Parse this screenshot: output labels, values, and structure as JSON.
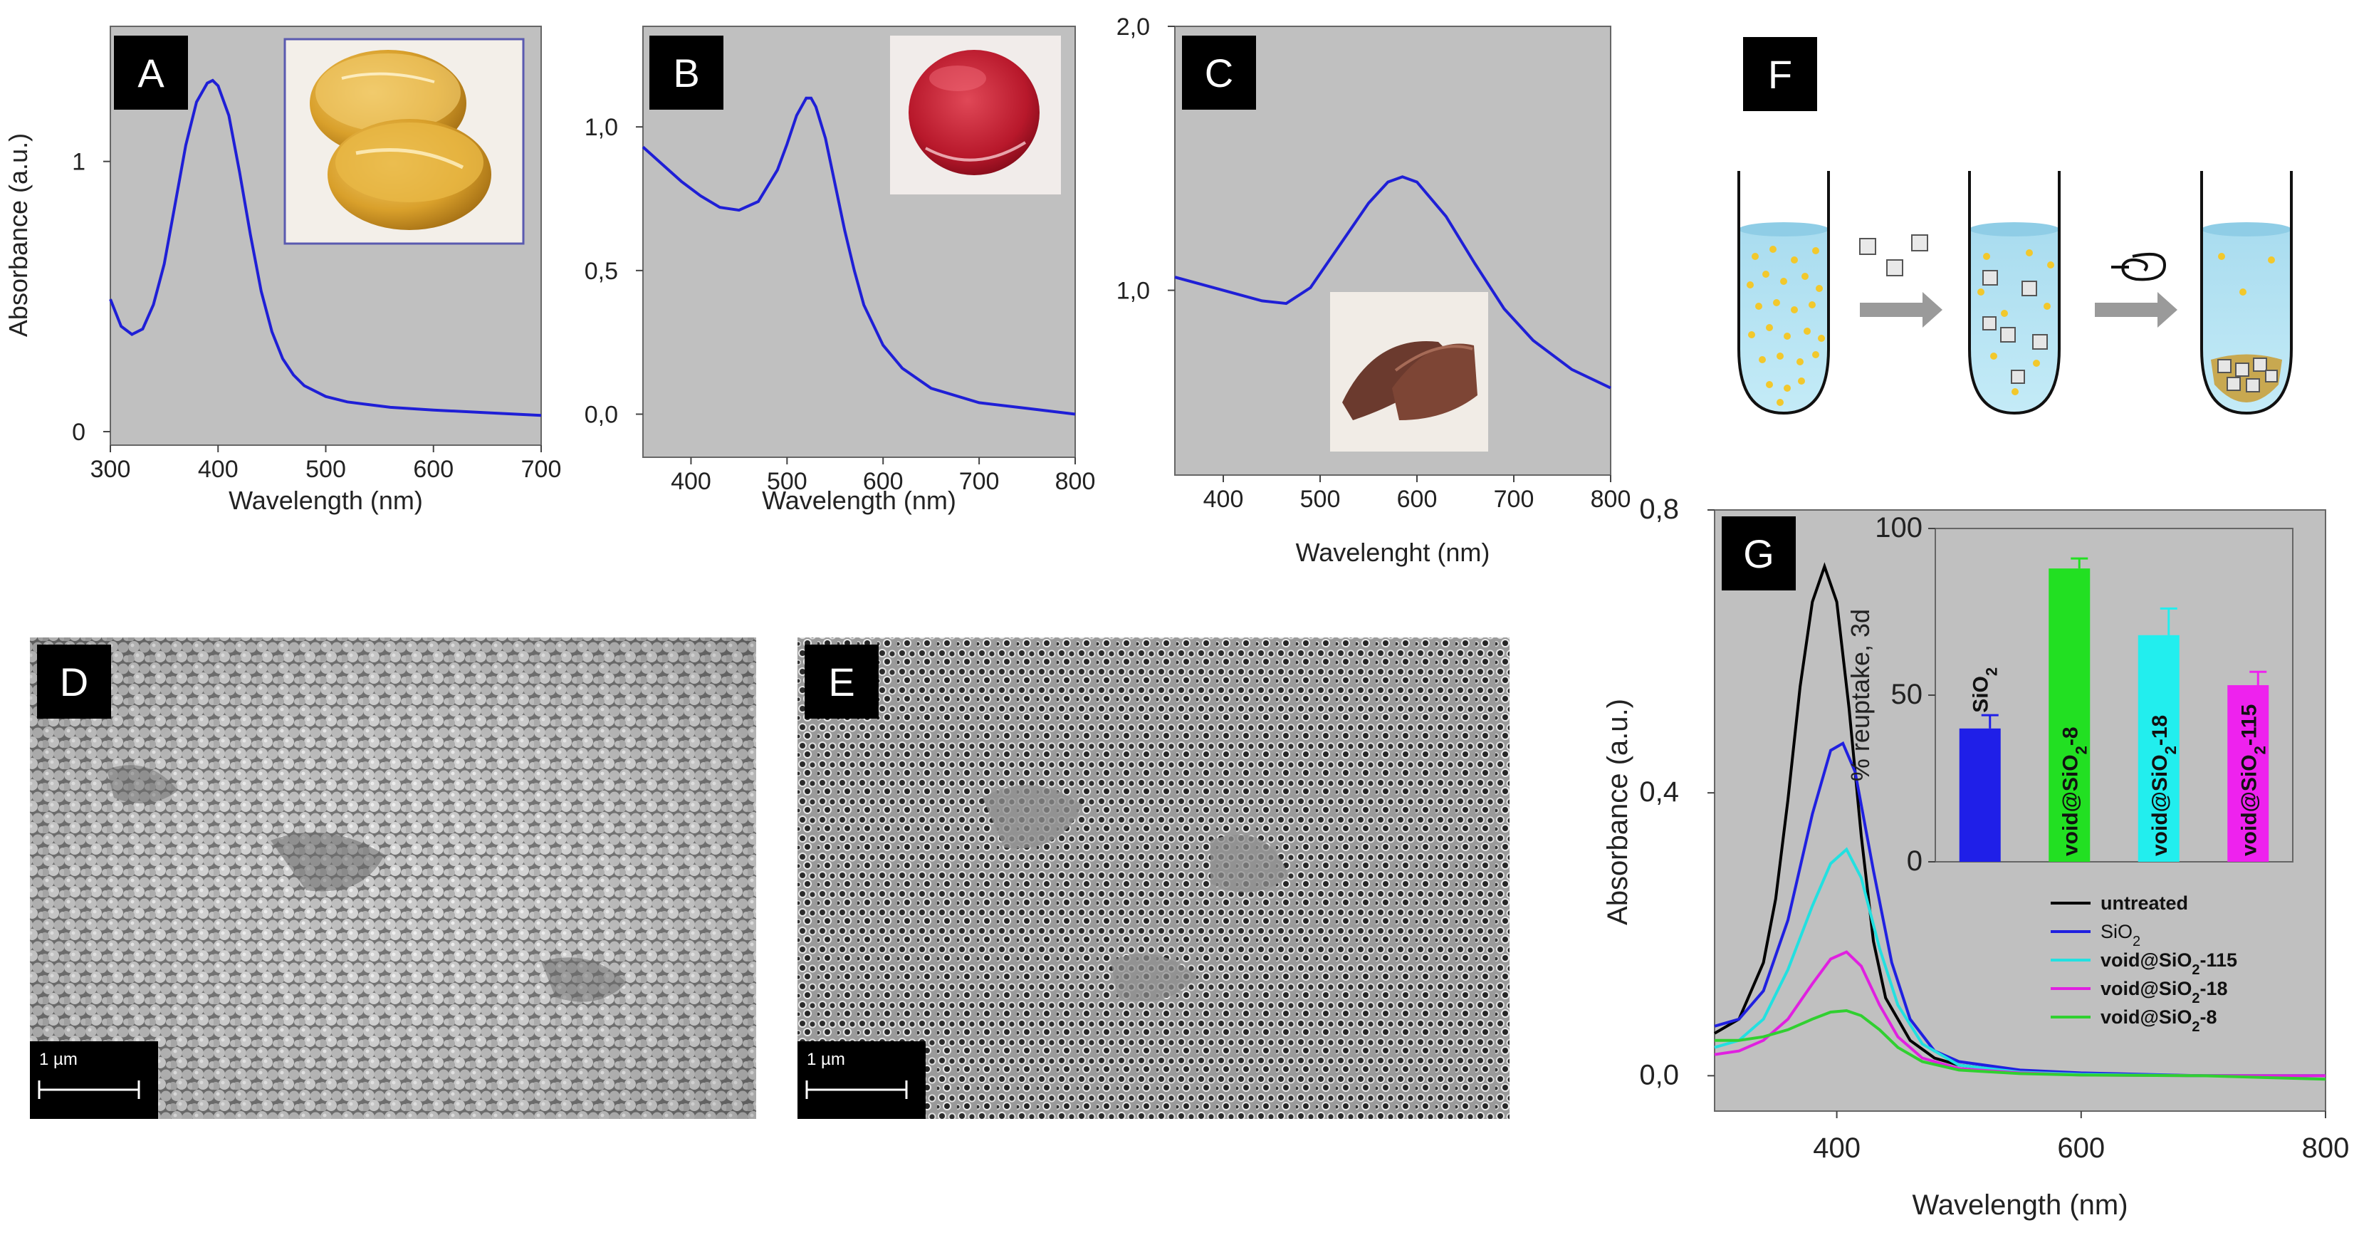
{
  "figure": {
    "panel_labels": {
      "A": "A",
      "B": "B",
      "C": "C",
      "D": "D",
      "E": "E",
      "F": "F",
      "G": "G"
    },
    "sem_scale_D": "1 µm",
    "sem_scale_E": "1 µm"
  },
  "chart_data": [
    {
      "panel": "A",
      "type": "line",
      "xlabel": "Wavelength (nm)",
      "ylabel": "Absorbance (a.u.)",
      "xlim": [
        300,
        700
      ],
      "ylim": [
        -0.05,
        1.5
      ],
      "xticks": [
        {
          "v": 300,
          "label": "300"
        },
        {
          "v": 400,
          "label": "400"
        },
        {
          "v": 500,
          "label": "500"
        },
        {
          "v": 600,
          "label": "600"
        },
        {
          "v": 700,
          "label": "700"
        }
      ],
      "yticks": [
        {
          "v": 0,
          "label": "0"
        },
        {
          "v": 1,
          "label": "1"
        }
      ],
      "color": "#1f1fd6",
      "series": [
        {
          "name": "A",
          "x": [
            300,
            310,
            320,
            330,
            340,
            350,
            360,
            370,
            380,
            390,
            395,
            400,
            410,
            420,
            430,
            440,
            450,
            460,
            470,
            480,
            500,
            520,
            540,
            560,
            600,
            650,
            700
          ],
          "y": [
            0.49,
            0.39,
            0.36,
            0.38,
            0.47,
            0.62,
            0.84,
            1.06,
            1.22,
            1.29,
            1.3,
            1.28,
            1.17,
            0.96,
            0.73,
            0.52,
            0.37,
            0.27,
            0.21,
            0.17,
            0.13,
            0.11,
            0.1,
            0.09,
            0.08,
            0.07,
            0.06
          ]
        }
      ]
    },
    {
      "panel": "B",
      "type": "line",
      "xlabel": "Wavelength (nm)",
      "ylabel": "",
      "xlim": [
        350,
        800
      ],
      "ylim": [
        -0.15,
        1.35
      ],
      "xticks": [
        {
          "v": 400,
          "label": "400"
        },
        {
          "v": 500,
          "label": "500"
        },
        {
          "v": 600,
          "label": "600"
        },
        {
          "v": 700,
          "label": "700"
        },
        {
          "v": 800,
          "label": "800"
        }
      ],
      "yticks": [
        {
          "v": 0,
          "label": "0,0"
        },
        {
          "v": 0.5,
          "label": "0,5"
        },
        {
          "v": 1,
          "label": "1,0"
        }
      ],
      "color": "#1f1fd6",
      "series": [
        {
          "name": "B",
          "x": [
            350,
            370,
            390,
            410,
            430,
            450,
            470,
            490,
            500,
            510,
            520,
            525,
            530,
            540,
            550,
            560,
            570,
            580,
            600,
            620,
            650,
            700,
            750,
            800
          ],
          "y": [
            0.93,
            0.87,
            0.81,
            0.76,
            0.72,
            0.71,
            0.74,
            0.85,
            0.94,
            1.04,
            1.1,
            1.1,
            1.07,
            0.96,
            0.8,
            0.64,
            0.5,
            0.38,
            0.24,
            0.16,
            0.09,
            0.04,
            0.02,
            0.0
          ]
        }
      ]
    },
    {
      "panel": "C",
      "type": "line",
      "xlabel": "Wavelenght (nm)",
      "ylabel": "",
      "xlim": [
        350,
        800
      ],
      "ylim": [
        0.3,
        2.0
      ],
      "xticks": [
        {
          "v": 400,
          "label": "400"
        },
        {
          "v": 500,
          "label": "500"
        },
        {
          "v": 600,
          "label": "600"
        },
        {
          "v": 700,
          "label": "700"
        },
        {
          "v": 800,
          "label": "800"
        }
      ],
      "yticks": [
        {
          "v": 1.0,
          "label": "1,0"
        },
        {
          "v": 2.0,
          "label": "2,0"
        }
      ],
      "color": "#1f1fd6",
      "series": [
        {
          "name": "C",
          "x": [
            350,
            380,
            410,
            440,
            465,
            490,
            520,
            550,
            570,
            585,
            600,
            630,
            660,
            690,
            720,
            760,
            800
          ],
          "y": [
            1.05,
            1.02,
            0.99,
            0.96,
            0.95,
            1.01,
            1.17,
            1.33,
            1.41,
            1.43,
            1.41,
            1.28,
            1.1,
            0.93,
            0.81,
            0.7,
            0.63
          ]
        }
      ]
    },
    {
      "panel": "G",
      "type": "line",
      "xlabel": "Wavelength (nm)",
      "ylabel": "Absorbance (a.u.)",
      "xlim": [
        300,
        800
      ],
      "ylim": [
        -0.05,
        0.8
      ],
      "xticks": [
        {
          "v": 400,
          "label": "400"
        },
        {
          "v": 600,
          "label": "600"
        },
        {
          "v": 800,
          "label": "800"
        }
      ],
      "yticks": [
        {
          "v": 0,
          "label": "0,0"
        },
        {
          "v": 0.4,
          "label": "0,4"
        },
        {
          "v": 0.8,
          "label": "0,8"
        }
      ],
      "legend_position": "lower-right",
      "series": [
        {
          "name": "untreated",
          "legend": "untreated",
          "color": "#000000",
          "x": [
            300,
            320,
            340,
            350,
            360,
            370,
            380,
            390,
            400,
            410,
            420,
            430,
            440,
            460,
            480,
            500,
            550,
            600,
            700,
            800
          ],
          "y": [
            0.06,
            0.08,
            0.16,
            0.25,
            0.39,
            0.55,
            0.67,
            0.72,
            0.67,
            0.52,
            0.34,
            0.19,
            0.11,
            0.05,
            0.025,
            0.015,
            0.005,
            0.002,
            0.0,
            0.0
          ]
        },
        {
          "name": "SiO2",
          "legend": "SiO",
          "legend_sub": "2",
          "color": "#2020e0",
          "x": [
            300,
            320,
            340,
            360,
            380,
            395,
            405,
            415,
            430,
            445,
            460,
            480,
            500,
            550,
            600,
            700,
            800
          ],
          "y": [
            0.07,
            0.08,
            0.12,
            0.22,
            0.37,
            0.46,
            0.47,
            0.43,
            0.29,
            0.16,
            0.08,
            0.035,
            0.02,
            0.008,
            0.004,
            0.0,
            0.0
          ]
        },
        {
          "name": "void@SiO2-115",
          "legend_pre": "void@SiO",
          "legend_sub": "2",
          "legend_post": "-115",
          "color": "#22e0e0",
          "x": [
            300,
            320,
            340,
            360,
            380,
            395,
            408,
            420,
            435,
            450,
            470,
            500,
            550,
            600,
            700,
            800
          ],
          "y": [
            0.04,
            0.05,
            0.08,
            0.15,
            0.24,
            0.3,
            0.32,
            0.28,
            0.18,
            0.1,
            0.045,
            0.015,
            0.005,
            0.002,
            0.0,
            0.0
          ]
        },
        {
          "name": "void@SiO2-18",
          "legend_pre": "void@SiO",
          "legend_sub": "2",
          "legend_post": "-18",
          "color": "#e020e0",
          "x": [
            300,
            320,
            340,
            360,
            380,
            395,
            408,
            420,
            435,
            450,
            470,
            500,
            550,
            600,
            700,
            800
          ],
          "y": [
            0.03,
            0.035,
            0.05,
            0.08,
            0.13,
            0.165,
            0.175,
            0.155,
            0.1,
            0.055,
            0.025,
            0.01,
            0.004,
            0.001,
            0.0,
            0.0
          ]
        },
        {
          "name": "void@SiO2-8",
          "legend_pre": "void@SiO",
          "legend_sub": "2",
          "legend_post": "-8",
          "color": "#30d030",
          "x": [
            300,
            320,
            340,
            360,
            380,
            395,
            408,
            420,
            435,
            450,
            470,
            500,
            550,
            600,
            700,
            800
          ],
          "y": [
            0.05,
            0.05,
            0.055,
            0.065,
            0.08,
            0.09,
            0.092,
            0.085,
            0.065,
            0.04,
            0.02,
            0.008,
            0.003,
            0.001,
            0.0,
            -0.005
          ]
        }
      ]
    },
    {
      "panel": "G-inset",
      "type": "bar",
      "ylabel": "% reuptake, 3d",
      "ylim": [
        0,
        100
      ],
      "yticks": [
        {
          "v": 0,
          "label": "0"
        },
        {
          "v": 50,
          "label": "50"
        },
        {
          "v": 100,
          "label": "100"
        }
      ],
      "bars": [
        {
          "name": "SiO2",
          "label_pre": "SiO",
          "label_sub": "2",
          "label_post": "",
          "value": 40,
          "error": 4,
          "color": "#1f1fe8",
          "label_weight": "normal"
        },
        {
          "name": "void@SiO2-8",
          "label_pre": "void@SiO",
          "label_sub": "2",
          "label_post": "-8",
          "value": 88,
          "error": 3,
          "color": "#22e022",
          "label_weight": "bold"
        },
        {
          "name": "void@SiO2-18",
          "label_pre": "void@SiO",
          "label_sub": "2",
          "label_post": "-18",
          "value": 68,
          "error": 8,
          "color": "#22eeee",
          "label_weight": "bold"
        },
        {
          "name": "void@SiO2-115",
          "label_pre": "void@SiO",
          "label_sub": "2",
          "label_post": "-115",
          "value": 53,
          "error": 4,
          "color": "#ee22ee",
          "label_weight": "bold"
        }
      ]
    }
  ]
}
